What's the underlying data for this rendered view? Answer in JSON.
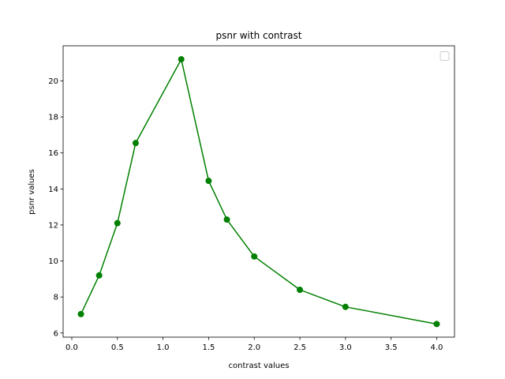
{
  "chart_data": {
    "type": "line",
    "title": "psnr with contrast",
    "xlabel": "contrast values",
    "ylabel": "psnr values",
    "xlim": [
      -0.095,
      4.195
    ],
    "ylim": [
      5.77,
      21.95
    ],
    "x_ticks": [
      0.0,
      0.5,
      1.0,
      1.5,
      2.0,
      2.5,
      3.0,
      3.5,
      4.0
    ],
    "x_tick_labels": [
      "0.0",
      "0.5",
      "1.0",
      "1.5",
      "2.0",
      "2.5",
      "3.0",
      "3.5",
      "4.0"
    ],
    "y_ticks": [
      6,
      8,
      10,
      12,
      14,
      16,
      18,
      20
    ],
    "y_tick_labels": [
      "6",
      "8",
      "10",
      "12",
      "14",
      "16",
      "18",
      "20"
    ],
    "grid": false,
    "legend": {
      "placement": "top-right",
      "entries": []
    },
    "series": [
      {
        "color": "#008000",
        "marker": "circle",
        "x": [
          0.1,
          0.3,
          0.5,
          0.7,
          1.2,
          1.5,
          1.7,
          2.0,
          2.5,
          3.0,
          4.0
        ],
        "y": [
          7.05,
          9.2,
          12.1,
          16.55,
          21.2,
          14.45,
          12.3,
          10.25,
          8.4,
          7.45,
          6.5
        ]
      }
    ]
  }
}
